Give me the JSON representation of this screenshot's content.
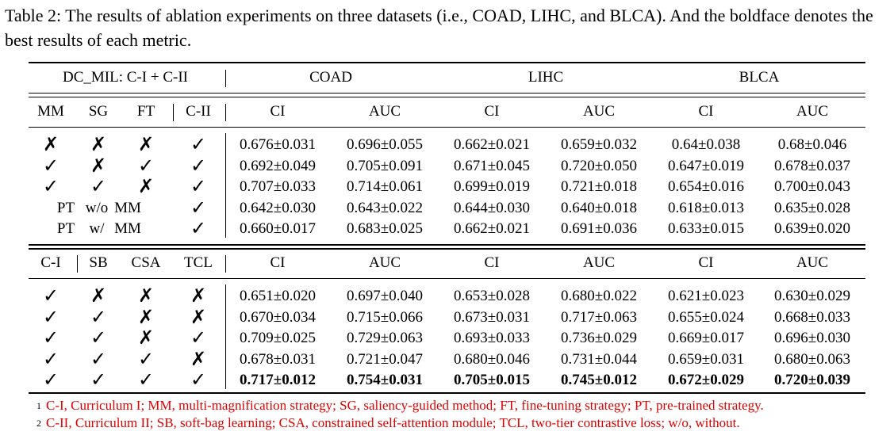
{
  "caption": "Table 2: The results of ablation experiments on three datasets (i.e., COAD, LIHC, and BLCA). And the boldface denotes the best results of each metric.",
  "header": {
    "method": "DC_MIL: C-I + C-II",
    "datasets": [
      "COAD",
      "LIHC",
      "BLCA"
    ],
    "metrics": [
      "CI",
      "AUC",
      "CI",
      "AUC",
      "CI",
      "AUC"
    ]
  },
  "section1": {
    "columns": [
      "MM",
      "SG",
      "FT",
      "C-II"
    ],
    "rows": [
      {
        "flags": [
          "✗",
          "✗",
          "✗",
          "✓"
        ],
        "values": [
          "0.676±0.031",
          "0.696±0.055",
          "0.662±0.021",
          "0.659±0.032",
          "0.64±0.038",
          "0.68±0.046"
        ]
      },
      {
        "flags": [
          "✓",
          "✗",
          "✓",
          "✓"
        ],
        "values": [
          "0.692±0.049",
          "0.705±0.091",
          "0.671±0.045",
          "0.720±0.050",
          "0.647±0.019",
          "0.678±0.037"
        ]
      },
      {
        "flags": [
          "✓",
          "✓",
          "✗",
          "✓"
        ],
        "values": [
          "0.707±0.033",
          "0.714±0.061",
          "0.699±0.019",
          "0.721±0.018",
          "0.654±0.016",
          "0.700±0.043"
        ]
      },
      {
        "label": [
          "PT",
          "w/o",
          "MM"
        ],
        "flag": "✓",
        "values": [
          "0.642±0.030",
          "0.643±0.022",
          "0.644±0.030",
          "0.640±0.018",
          "0.618±0.013",
          "0.635±0.028"
        ]
      },
      {
        "label": [
          "PT",
          "w/",
          "MM"
        ],
        "flag": "✓",
        "values": [
          "0.660±0.017",
          "0.683±0.025",
          "0.662±0.021",
          "0.691±0.036",
          "0.633±0.015",
          "0.639±0.020"
        ]
      }
    ]
  },
  "section2": {
    "columns": [
      "C-I",
      "SB",
      "CSA",
      "TCL"
    ],
    "rows": [
      {
        "flags": [
          "✓",
          "✗",
          "✗",
          "✗"
        ],
        "values": [
          "0.651±0.020",
          "0.697±0.040",
          "0.653±0.028",
          "0.680±0.022",
          "0.621±0.023",
          "0.630±0.029"
        ]
      },
      {
        "flags": [
          "✓",
          "✓",
          "✗",
          "✗"
        ],
        "values": [
          "0.670±0.034",
          "0.715±0.066",
          "0.673±0.031",
          "0.717±0.063",
          "0.655±0.024",
          "0.668±0.033"
        ]
      },
      {
        "flags": [
          "✓",
          "✓",
          "✗",
          "✓"
        ],
        "values": [
          "0.709±0.025",
          "0.729±0.063",
          "0.693±0.033",
          "0.736±0.029",
          "0.669±0.017",
          "0.696±0.030"
        ]
      },
      {
        "flags": [
          "✓",
          "✓",
          "✓",
          "✗"
        ],
        "values": [
          "0.678±0.031",
          "0.721±0.047",
          "0.680±0.046",
          "0.731±0.044",
          "0.659±0.031",
          "0.680±0.063"
        ]
      },
      {
        "flags": [
          "✓",
          "✓",
          "✓",
          "✓"
        ],
        "values": [
          "0.717±0.012",
          "0.754±0.031",
          "0.705±0.015",
          "0.745±0.012",
          "0.672±0.029",
          "0.720±0.039"
        ],
        "best": true
      }
    ]
  },
  "footnotes": [
    {
      "mark": "1",
      "text": "C-I, Curriculum I; MM, multi-magnification strategy; SG, saliency-guided method; FT, fine-tuning strategy; PT, pre-trained strategy."
    },
    {
      "mark": "2",
      "text": "C-II, Curriculum II; SB, soft-bag learning; CSA, constrained self-attention module; TCL, two-tier contrastive loss; w/o, without."
    }
  ],
  "colors": {
    "footnote_text": "#e00000",
    "rules": "#000000"
  }
}
